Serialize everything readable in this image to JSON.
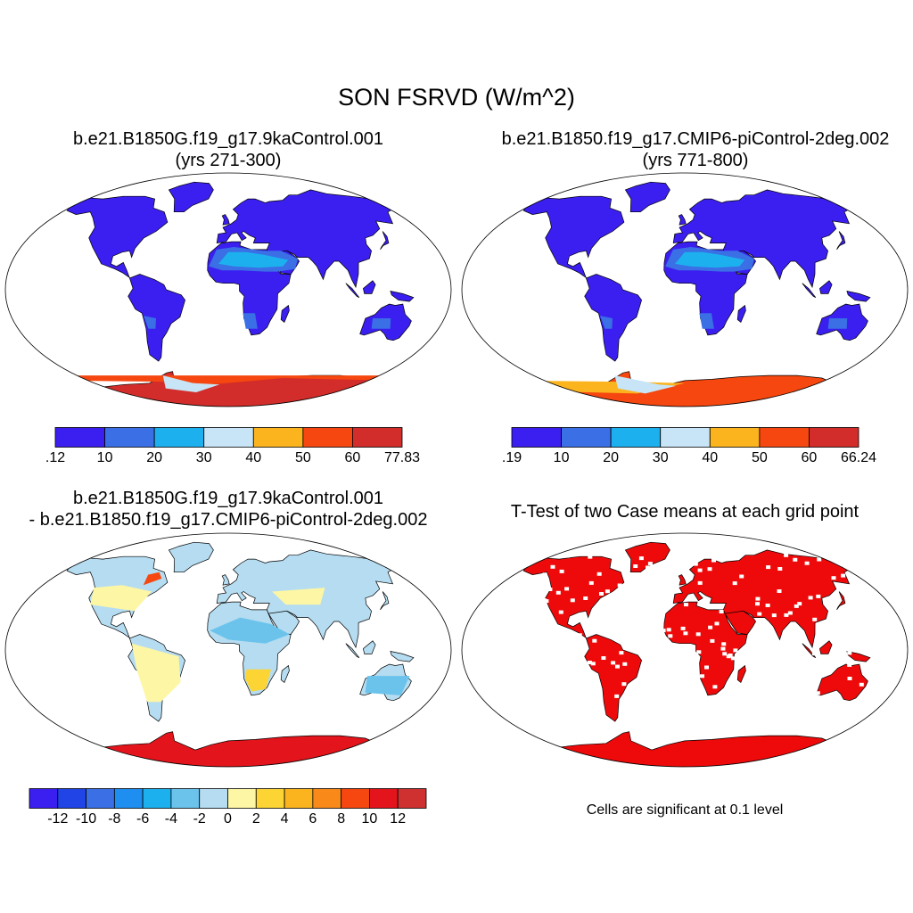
{
  "figure": {
    "title": "SON FSRVD (W/m^2)",
    "panels": [
      {
        "id": "case",
        "title_line1": "b.e21.B1850G.f19_g17.9kaControl.001",
        "title_line2": "(yrs 271-300)"
      },
      {
        "id": "control",
        "title_line1": "b.e21.B1850.f19_g17.CMIP6-piControl-2deg.002",
        "title_line2": "(yrs 771-800)"
      },
      {
        "id": "difference",
        "title_line1": "b.e21.B1850G.f19_g17.9kaControl.001",
        "title_line2": "- b.e21.B1850.f19_g17.CMIP6-piControl-2deg.002"
      },
      {
        "id": "ttest",
        "title_line1": "T-Test of two Case means at each grid point"
      }
    ],
    "significance_note": "Cells are significant at 0.1 level"
  },
  "colorbars": {
    "case": {
      "labels": [
        ".12",
        "10",
        "20",
        "30",
        "40",
        "50",
        "60",
        "77.83"
      ],
      "colors": [
        "#3b1ff0",
        "#3a6fe6",
        "#1cb1ee",
        "#c7e5f6",
        "#fbb41e",
        "#f5470f",
        "#d22d2a"
      ]
    },
    "control": {
      "labels": [
        ".19",
        "10",
        "20",
        "30",
        "40",
        "50",
        "60",
        "66.24"
      ],
      "colors": [
        "#3b1ff0",
        "#3a6fe6",
        "#1cb1ee",
        "#c7e5f6",
        "#fbb41e",
        "#f5470f",
        "#d22d2a"
      ]
    },
    "difference": {
      "labels": [
        "-12",
        "-10",
        "-8",
        "-6",
        "-4",
        "-2",
        "0",
        "2",
        "4",
        "6",
        "8",
        "10",
        "12"
      ],
      "colors": [
        "#3b1ff0",
        "#2044e6",
        "#3a6fe6",
        "#1e8ef0",
        "#1cb1ee",
        "#6bc3ec",
        "#b5dcf0",
        "#fdf6a5",
        "#fcd535",
        "#fbb41e",
        "#f98a1a",
        "#f5470f",
        "#e3141b",
        "#cf3030"
      ]
    }
  },
  "map_colors": {
    "case": {
      "land": "#3b1ff0",
      "desert": "#3a6fe6",
      "desert_light": "#1cb1ee",
      "antarctica": "#d22d2a",
      "antarctica_edge": "#f5470f",
      "antarctica_pale": "#c7e5f6"
    },
    "control": {
      "land": "#3b1ff0",
      "desert": "#3a6fe6",
      "desert_light": "#1cb1ee",
      "antarctica": "#f5470f",
      "antarctica_warm": "#fbb41e",
      "antarctica_pale": "#c7e5f6"
    },
    "difference": {
      "land": "#b5dcf0",
      "warm": "#fdf6a5",
      "warm2": "#fcd535",
      "neg": "#6bc3ec",
      "hot": "#f5470f",
      "antarctica": "#e3141b"
    },
    "ttest": {
      "land": "#ee0a0a"
    }
  }
}
